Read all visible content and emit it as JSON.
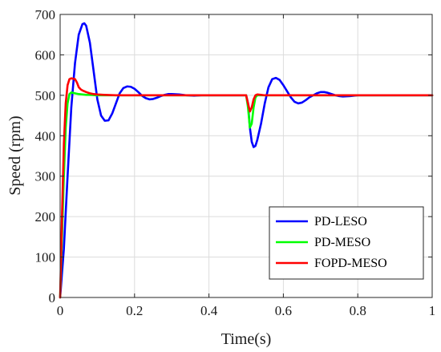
{
  "chart_data": {
    "type": "line",
    "title": "",
    "xlabel": "Time(s)",
    "ylabel": "Speed (rpm)",
    "xlim": [
      0,
      1
    ],
    "ylim": [
      0,
      700
    ],
    "xticks": [
      0,
      0.2,
      0.4,
      0.6,
      0.8,
      1
    ],
    "xtick_labels": [
      "0",
      "0.2",
      "0.4",
      "0.6",
      "0.8",
      "1"
    ],
    "yticks": [
      0,
      100,
      200,
      300,
      400,
      500,
      600,
      700
    ],
    "ytick_labels": [
      "0",
      "100",
      "200",
      "300",
      "400",
      "500",
      "600",
      "700"
    ],
    "grid": true,
    "legend_position": "bottom-right",
    "series": [
      {
        "name": "PD-LESO",
        "color": "#0000ff",
        "x": [
          0,
          0.01,
          0.02,
          0.03,
          0.04,
          0.05,
          0.06,
          0.065,
          0.07,
          0.08,
          0.09,
          0.1,
          0.11,
          0.12,
          0.13,
          0.14,
          0.15,
          0.16,
          0.17,
          0.18,
          0.19,
          0.2,
          0.21,
          0.22,
          0.23,
          0.24,
          0.25,
          0.26,
          0.27,
          0.28,
          0.29,
          0.3,
          0.32,
          0.34,
          0.36,
          0.38,
          0.4,
          0.45,
          0.5,
          0.505,
          0.51,
          0.515,
          0.52,
          0.525,
          0.53,
          0.54,
          0.55,
          0.56,
          0.57,
          0.58,
          0.59,
          0.6,
          0.61,
          0.62,
          0.63,
          0.64,
          0.65,
          0.66,
          0.67,
          0.68,
          0.69,
          0.7,
          0.71,
          0.72,
          0.73,
          0.74,
          0.75,
          0.76,
          0.78,
          0.8,
          0.85,
          0.9,
          0.95,
          1.0
        ],
        "y": [
          0,
          120,
          300,
          470,
          580,
          650,
          676,
          678,
          672,
          630,
          560,
          490,
          450,
          437,
          438,
          455,
          480,
          505,
          518,
          522,
          521,
          516,
          508,
          499,
          493,
          490,
          491,
          494,
          498,
          501,
          503,
          503,
          502,
          500,
          499,
          500,
          500,
          500,
          500,
          480,
          420,
          385,
          372,
          375,
          390,
          430,
          480,
          520,
          540,
          543,
          538,
          525,
          510,
          495,
          484,
          480,
          482,
          488,
          495,
          500,
          505,
          508,
          508,
          506,
          503,
          500,
          498,
          497,
          498,
          500,
          500,
          500,
          500,
          500
        ]
      },
      {
        "name": "PD-MESO",
        "color": "#00ff00",
        "x": [
          0,
          0.005,
          0.01,
          0.015,
          0.02,
          0.025,
          0.03,
          0.04,
          0.05,
          0.06,
          0.07,
          0.08,
          0.1,
          0.12,
          0.15,
          0.2,
          0.3,
          0.4,
          0.5,
          0.505,
          0.51,
          0.515,
          0.52,
          0.525,
          0.53,
          0.54,
          0.55,
          0.6,
          0.7,
          0.8,
          0.9,
          1.0
        ],
        "y": [
          0,
          150,
          300,
          420,
          480,
          503,
          507,
          505,
          503,
          502,
          501,
          501,
          500,
          500,
          500,
          500,
          500,
          500,
          500,
          470,
          420,
          430,
          470,
          495,
          500,
          500,
          500,
          500,
          500,
          500,
          500,
          500
        ]
      },
      {
        "name": "FOPD-MESO",
        "color": "#ff0000",
        "x": [
          0,
          0.005,
          0.01,
          0.015,
          0.02,
          0.025,
          0.03,
          0.04,
          0.045,
          0.05,
          0.055,
          0.06,
          0.07,
          0.08,
          0.09,
          0.1,
          0.12,
          0.15,
          0.2,
          0.3,
          0.4,
          0.5,
          0.505,
          0.51,
          0.515,
          0.52,
          0.525,
          0.53,
          0.54,
          0.55,
          0.6,
          0.7,
          0.8,
          0.9,
          1.0
        ],
        "y": [
          0,
          200,
          380,
          480,
          525,
          540,
          542,
          540,
          532,
          520,
          515,
          512,
          508,
          505,
          503,
          502,
          501,
          500,
          500,
          500,
          500,
          500,
          480,
          460,
          470,
          490,
          500,
          502,
          501,
          500,
          500,
          500,
          500,
          500,
          500
        ]
      }
    ]
  }
}
